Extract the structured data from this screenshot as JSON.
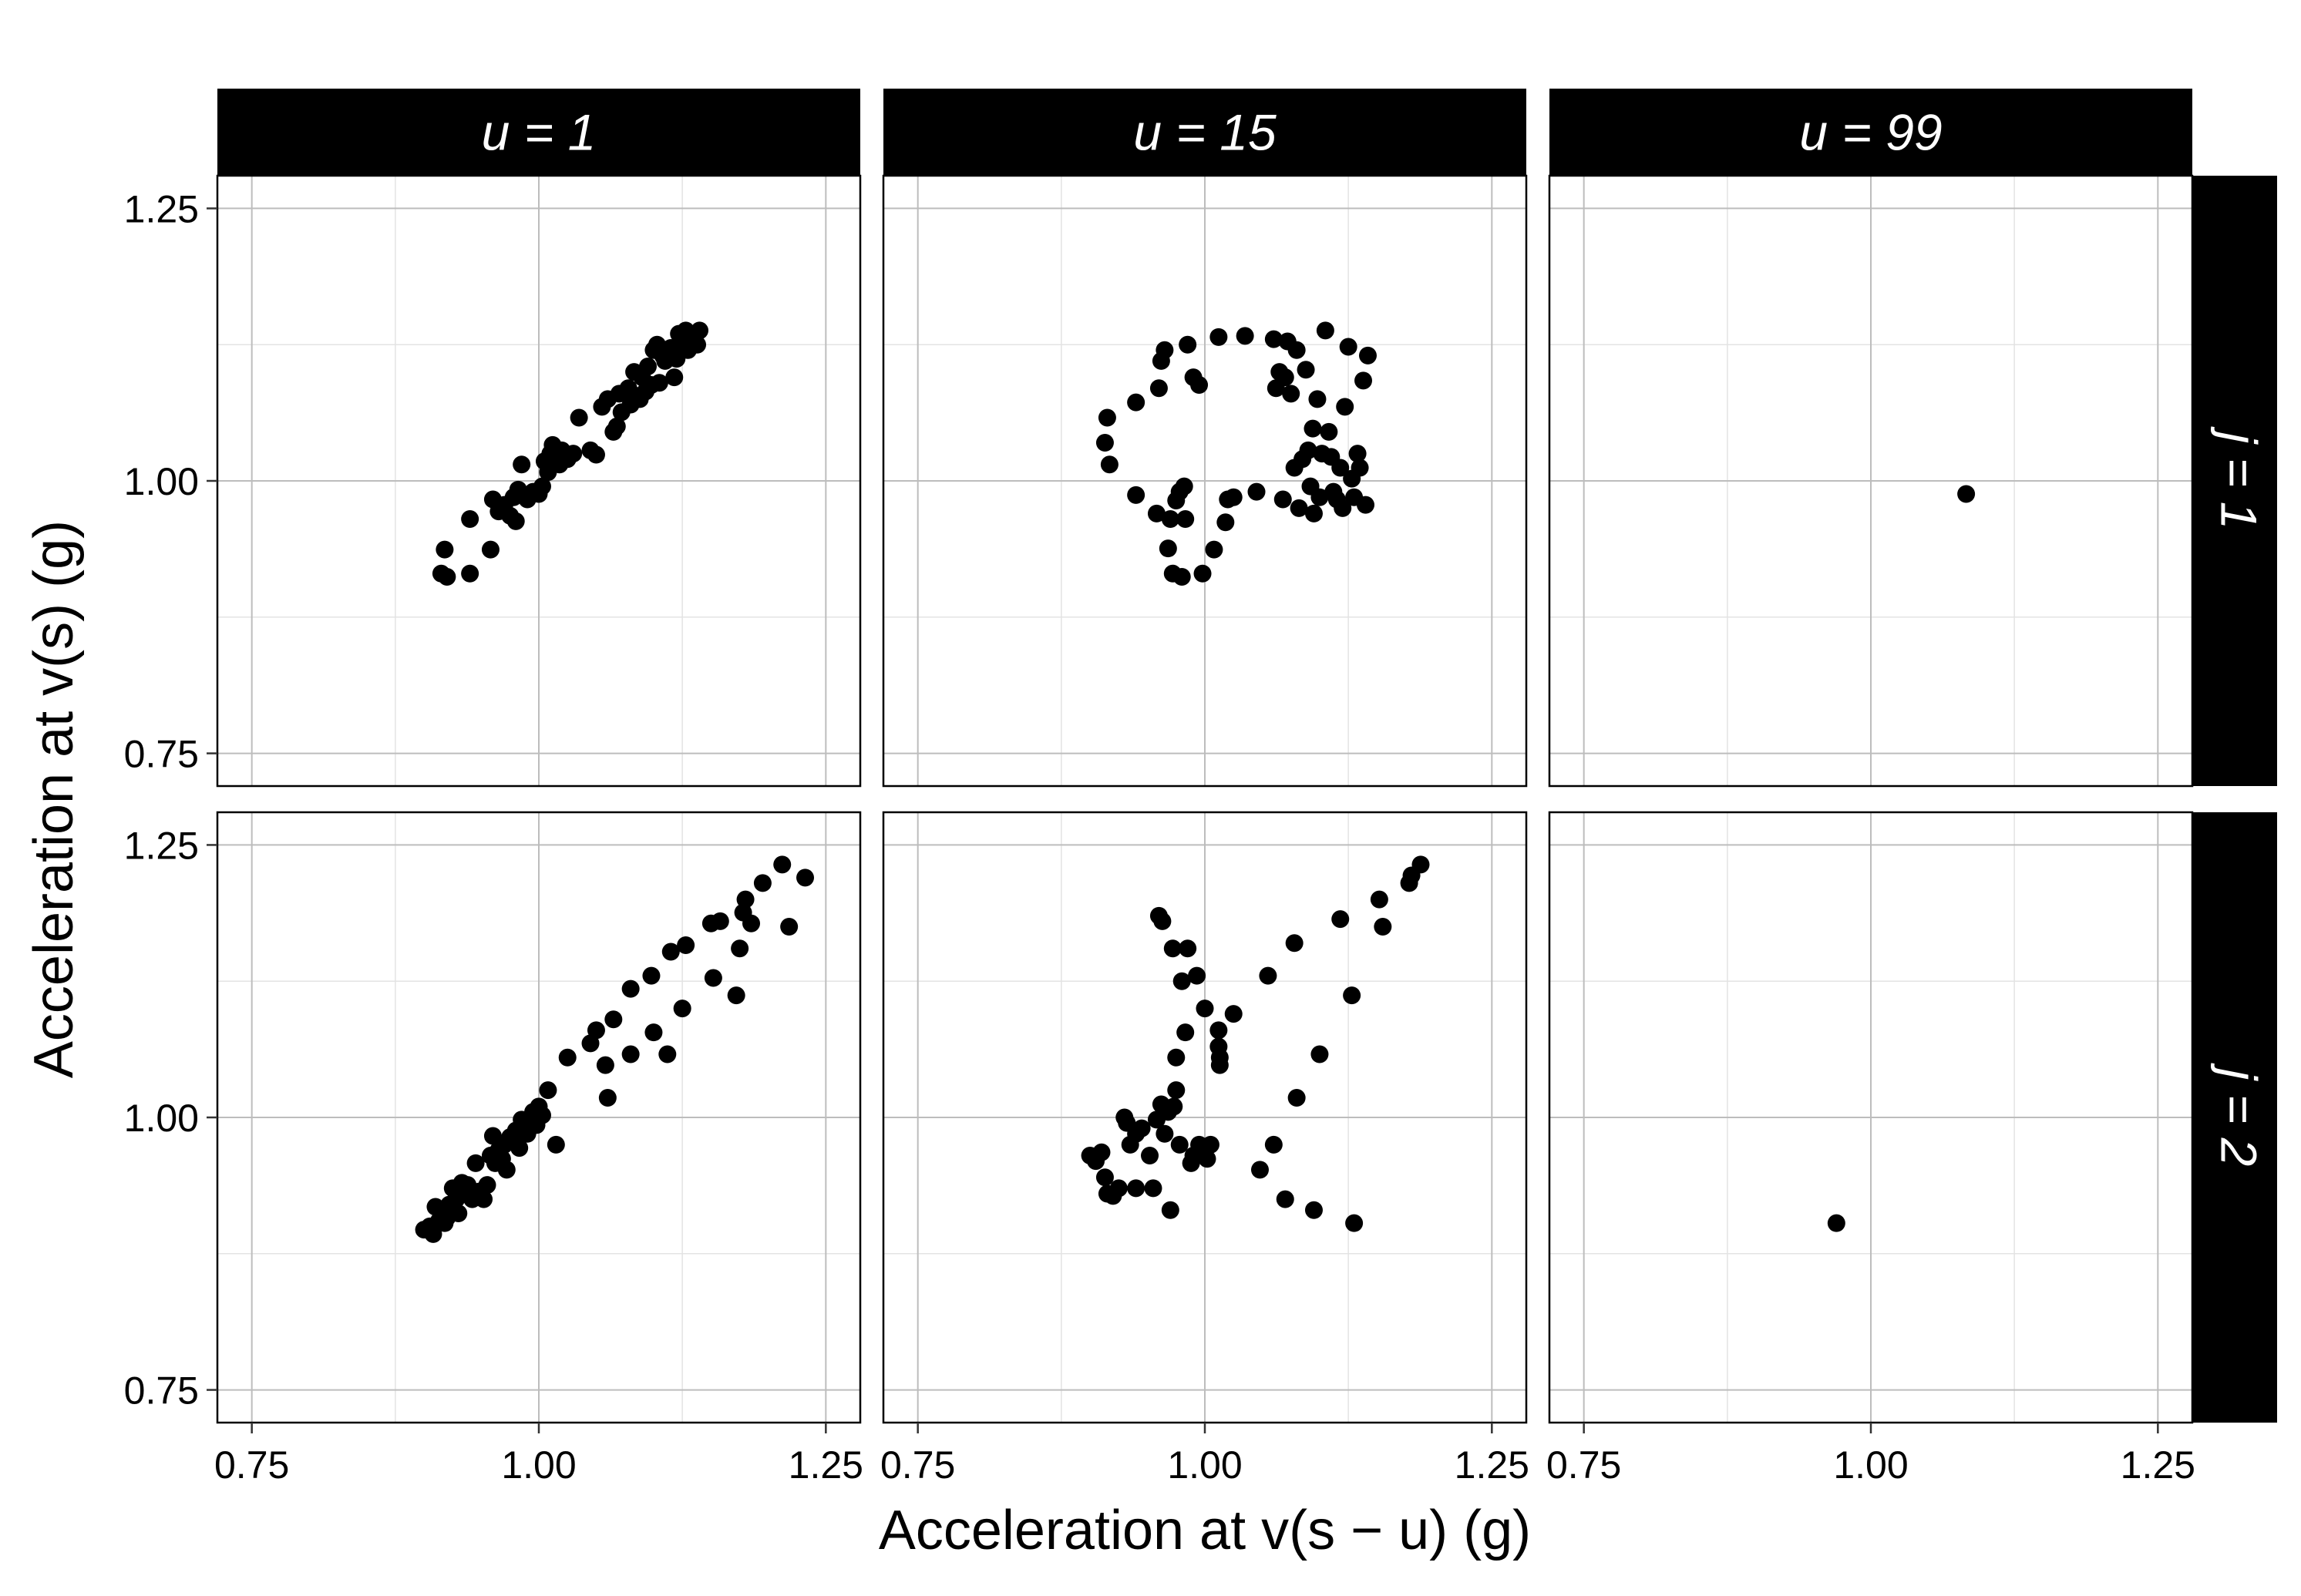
{
  "chart_data": {
    "type": "scatter",
    "facet_columns": [
      "u = 1",
      "u = 15",
      "u  = 99"
    ],
    "facet_rows": [
      "j = 1",
      "j = 2"
    ],
    "xlabel": "Acceleration at v(s − u) (g)",
    "ylabel": "Acceleration at v(s) (g)",
    "xlim": [
      0.72,
      1.28
    ],
    "ylim": [
      0.72,
      1.28
    ],
    "x_ticks": [
      "0.75",
      "1.00",
      "1.25"
    ],
    "y_ticks": [
      "0.75",
      "1.00",
      "1.25"
    ],
    "grid": true,
    "point_color": "#000000",
    "strip_color": "#000000",
    "panels": [
      {
        "column": "u = 1",
        "row": "j = 1",
        "points": [
          [
            0.915,
            0.915
          ],
          [
            0.92,
            0.912
          ],
          [
            0.918,
            0.937
          ],
          [
            0.94,
            0.915
          ],
          [
            0.94,
            0.965
          ],
          [
            0.958,
            0.937
          ],
          [
            0.96,
            0.983
          ],
          [
            0.965,
            0.972
          ],
          [
            0.97,
            0.978
          ],
          [
            0.975,
            0.968
          ],
          [
            0.978,
            0.985
          ],
          [
            0.98,
            0.963
          ],
          [
            0.982,
            0.992
          ],
          [
            0.985,
            1.015
          ],
          [
            0.99,
            0.983
          ],
          [
            0.995,
            0.99
          ],
          [
            1.0,
            0.988
          ],
          [
            1.003,
            0.995
          ],
          [
            1.005,
            1.018
          ],
          [
            1.008,
            1.008
          ],
          [
            1.01,
            1.025
          ],
          [
            1.012,
            1.033
          ],
          [
            1.018,
            1.015
          ],
          [
            1.02,
            1.028
          ],
          [
            1.025,
            1.02
          ],
          [
            1.03,
            1.025
          ],
          [
            1.035,
            1.058
          ],
          [
            1.045,
            1.028
          ],
          [
            1.05,
            1.024
          ],
          [
            1.055,
            1.068
          ],
          [
            1.06,
            1.075
          ],
          [
            1.065,
            1.045
          ],
          [
            1.068,
            1.05
          ],
          [
            1.07,
            1.08
          ],
          [
            1.072,
            1.063
          ],
          [
            1.078,
            1.085
          ],
          [
            1.08,
            1.07
          ],
          [
            1.083,
            1.1
          ],
          [
            1.085,
            1.078
          ],
          [
            1.088,
            1.075
          ],
          [
            1.09,
            1.095
          ],
          [
            1.093,
            1.082
          ],
          [
            1.095,
            1.105
          ],
          [
            1.098,
            1.088
          ],
          [
            1.1,
            1.12
          ],
          [
            1.103,
            1.125
          ],
          [
            1.105,
            1.09
          ],
          [
            1.108,
            1.115
          ],
          [
            1.11,
            1.11
          ],
          [
            1.115,
            1.122
          ],
          [
            1.118,
            1.095
          ],
          [
            1.12,
            1.112
          ],
          [
            1.122,
            1.135
          ],
          [
            1.125,
            1.125
          ],
          [
            1.128,
            1.138
          ],
          [
            1.13,
            1.12
          ],
          [
            1.133,
            1.128
          ],
          [
            1.135,
            1.132
          ],
          [
            1.138,
            1.125
          ],
          [
            1.14,
            1.138
          ]
        ]
      },
      {
        "column": "u = 15",
        "row": "j = 1",
        "points": [
          [
            0.913,
            1.035
          ],
          [
            0.915,
            1.058
          ],
          [
            0.917,
            1.015
          ],
          [
            0.94,
            1.072
          ],
          [
            0.94,
            0.987
          ],
          [
            0.958,
            0.97
          ],
          [
            0.96,
            1.085
          ],
          [
            0.962,
            1.11
          ],
          [
            0.965,
            1.12
          ],
          [
            0.968,
            0.938
          ],
          [
            0.97,
            0.965
          ],
          [
            0.972,
            0.915
          ],
          [
            0.975,
            0.982
          ],
          [
            0.978,
            0.99
          ],
          [
            0.98,
            0.912
          ],
          [
            0.982,
            0.995
          ],
          [
            0.983,
            0.965
          ],
          [
            0.985,
            1.125
          ],
          [
            0.99,
            1.095
          ],
          [
            0.995,
            1.088
          ],
          [
            0.998,
            0.915
          ],
          [
            1.008,
            0.937
          ],
          [
            1.012,
            1.132
          ],
          [
            1.018,
            0.962
          ],
          [
            1.02,
            0.983
          ],
          [
            1.025,
            0.985
          ],
          [
            1.035,
            1.133
          ],
          [
            1.045,
            0.99
          ],
          [
            1.06,
            1.13
          ],
          [
            1.062,
            1.085
          ],
          [
            1.065,
            1.1
          ],
          [
            1.068,
            0.983
          ],
          [
            1.07,
            1.095
          ],
          [
            1.072,
            1.128
          ],
          [
            1.075,
            1.08
          ],
          [
            1.078,
            1.012
          ],
          [
            1.08,
            1.12
          ],
          [
            1.082,
            0.975
          ],
          [
            1.085,
            1.02
          ],
          [
            1.088,
            1.102
          ],
          [
            1.09,
            1.028
          ],
          [
            1.092,
            0.995
          ],
          [
            1.094,
            1.048
          ],
          [
            1.095,
            0.97
          ],
          [
            1.098,
            1.075
          ],
          [
            1.1,
            0.985
          ],
          [
            1.102,
            1.025
          ],
          [
            1.105,
            1.138
          ],
          [
            1.108,
            1.045
          ],
          [
            1.11,
            1.022
          ],
          [
            1.112,
            0.99
          ],
          [
            1.115,
            0.983
          ],
          [
            1.118,
            1.012
          ],
          [
            1.12,
            0.975
          ],
          [
            1.122,
            1.068
          ],
          [
            1.125,
            1.123
          ],
          [
            1.128,
            1.002
          ],
          [
            1.13,
            0.985
          ],
          [
            1.133,
            1.025
          ],
          [
            1.135,
            1.012
          ],
          [
            1.138,
            1.092
          ],
          [
            1.14,
            0.978
          ],
          [
            1.142,
            1.115
          ]
        ]
      },
      {
        "column": "u  = 99",
        "row": "j = 1",
        "points": [
          [
            1.083,
            0.988
          ]
        ]
      },
      {
        "column": "u = 1",
        "row": "j = 2",
        "points": [
          [
            0.9,
            0.897
          ],
          [
            0.905,
            0.9
          ],
          [
            0.908,
            0.893
          ],
          [
            0.91,
            0.918
          ],
          [
            0.913,
            0.905
          ],
          [
            0.918,
            0.903
          ],
          [
            0.92,
            0.908
          ],
          [
            0.922,
            0.92
          ],
          [
            0.925,
            0.935
          ],
          [
            0.928,
            0.925
          ],
          [
            0.93,
            0.912
          ],
          [
            0.933,
            0.94
          ],
          [
            0.935,
            0.93
          ],
          [
            0.938,
            0.938
          ],
          [
            0.942,
            0.925
          ],
          [
            0.945,
            0.958
          ],
          [
            0.948,
            0.932
          ],
          [
            0.952,
            0.925
          ],
          [
            0.955,
            0.938
          ],
          [
            0.958,
            0.965
          ],
          [
            0.96,
            0.983
          ],
          [
            0.962,
            0.958
          ],
          [
            0.965,
            0.97
          ],
          [
            0.968,
            0.962
          ],
          [
            0.97,
            0.975
          ],
          [
            0.972,
            0.952
          ],
          [
            0.975,
            0.982
          ],
          [
            0.978,
            0.978
          ],
          [
            0.98,
            0.988
          ],
          [
            0.983,
            0.972
          ],
          [
            0.985,
            0.998
          ],
          [
            0.988,
            0.99
          ],
          [
            0.99,
            0.985
          ],
          [
            0.993,
            0.995
          ],
          [
            0.995,
            1.005
          ],
          [
            0.998,
            0.993
          ],
          [
            1.0,
            1.01
          ],
          [
            1.003,
            1.002
          ],
          [
            1.008,
            1.025
          ],
          [
            1.015,
            0.975
          ],
          [
            1.025,
            1.055
          ],
          [
            1.045,
            1.068
          ],
          [
            1.05,
            1.08
          ],
          [
            1.058,
            1.048
          ],
          [
            1.06,
            1.018
          ],
          [
            1.065,
            1.09
          ],
          [
            1.08,
            1.058
          ],
          [
            1.08,
            1.118
          ],
          [
            1.098,
            1.13
          ],
          [
            1.1,
            1.078
          ],
          [
            1.112,
            1.058
          ],
          [
            1.115,
            1.152
          ],
          [
            1.125,
            1.1
          ],
          [
            1.128,
            1.158
          ],
          [
            1.15,
            1.178
          ],
          [
            1.152,
            1.128
          ],
          [
            1.158,
            1.18
          ],
          [
            1.172,
            1.112
          ],
          [
            1.175,
            1.155
          ],
          [
            1.178,
            1.188
          ],
          [
            1.18,
            1.2
          ],
          [
            1.185,
            1.178
          ],
          [
            1.195,
            1.215
          ],
          [
            1.212,
            1.232
          ],
          [
            1.218,
            1.175
          ],
          [
            1.232,
            1.22
          ]
        ]
      },
      {
        "column": "u = 15",
        "row": "j = 2",
        "points": [
          [
            0.9,
            0.965
          ],
          [
            0.905,
            0.96
          ],
          [
            0.91,
            0.968
          ],
          [
            0.913,
            0.945
          ],
          [
            0.915,
            0.93
          ],
          [
            0.92,
            0.928
          ],
          [
            0.925,
            0.935
          ],
          [
            0.93,
            1.0
          ],
          [
            0.932,
            0.995
          ],
          [
            0.935,
            0.975
          ],
          [
            0.94,
            0.985
          ],
          [
            0.94,
            0.935
          ],
          [
            0.945,
            0.99
          ],
          [
            0.952,
            0.965
          ],
          [
            0.955,
            0.935
          ],
          [
            0.958,
            0.998
          ],
          [
            0.96,
            1.185
          ],
          [
            0.962,
            1.012
          ],
          [
            0.963,
            1.18
          ],
          [
            0.965,
            0.985
          ],
          [
            0.968,
            1.005
          ],
          [
            0.97,
            0.915
          ],
          [
            0.972,
            1.155
          ],
          [
            0.973,
            1.01
          ],
          [
            0.975,
            1.055
          ],
          [
            0.975,
            1.025
          ],
          [
            0.978,
            0.975
          ],
          [
            0.98,
            1.125
          ],
          [
            0.983,
            1.078
          ],
          [
            0.985,
            1.155
          ],
          [
            0.988,
            0.958
          ],
          [
            0.99,
            0.965
          ],
          [
            0.993,
            1.13
          ],
          [
            0.995,
            0.975
          ],
          [
            0.998,
            0.968
          ],
          [
            1.0,
            1.1
          ],
          [
            1.002,
            0.962
          ],
          [
            1.005,
            0.975
          ],
          [
            1.012,
            1.08
          ],
          [
            1.012,
            1.065
          ],
          [
            1.013,
            1.055
          ],
          [
            1.013,
            1.048
          ],
          [
            1.025,
            1.095
          ],
          [
            1.048,
            0.952
          ],
          [
            1.055,
            1.13
          ],
          [
            1.06,
            0.975
          ],
          [
            1.07,
            0.925
          ],
          [
            1.078,
            1.16
          ],
          [
            1.08,
            1.018
          ],
          [
            1.095,
            0.915
          ],
          [
            1.1,
            1.058
          ],
          [
            1.118,
            1.182
          ],
          [
            1.128,
            1.112
          ],
          [
            1.13,
            0.903
          ],
          [
            1.152,
            1.2
          ],
          [
            1.155,
            1.175
          ],
          [
            1.178,
            1.215
          ],
          [
            1.18,
            1.222
          ],
          [
            1.188,
            1.232
          ]
        ]
      },
      {
        "column": "u  = 99",
        "row": "j = 2",
        "points": [
          [
            0.97,
            0.903
          ]
        ]
      }
    ]
  }
}
